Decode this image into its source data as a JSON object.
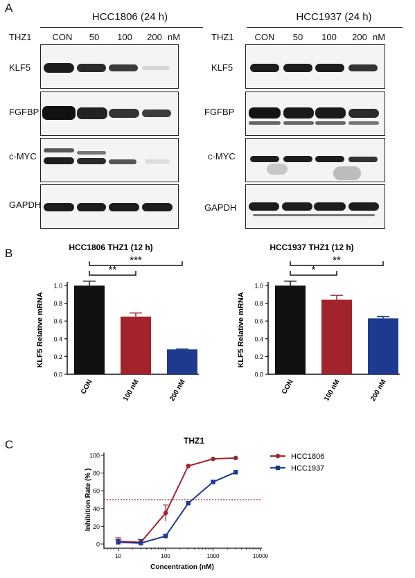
{
  "panel_labels": {
    "a": "A",
    "b": "B",
    "c": "C"
  },
  "panelA": {
    "left": {
      "title": "HCC1806 (24 h)",
      "treatment": "THZ1",
      "lanes": [
        "CON",
        "50",
        "100",
        "200"
      ],
      "unit": "nM",
      "proteins": [
        "KLF5",
        "FGFBP",
        "c-MYC",
        "GAPDH"
      ]
    },
    "right": {
      "title": "HCC1937 (24 h)",
      "treatment": "THZ1",
      "lanes": [
        "CON",
        "50",
        "100",
        "200"
      ],
      "unit": "nM",
      "proteins": [
        "KLF5",
        "FGFBP",
        "c-MYC",
        "GAPDH"
      ]
    }
  },
  "chart_data": [
    {
      "type": "bar",
      "title": "HCC1806  THZ1 (12 h)",
      "ylabel": "KLF5 Relative mRNA",
      "categories": [
        "CON",
        "100 nM",
        "200 nM"
      ],
      "values": [
        1.0,
        0.65,
        0.28
      ],
      "errors": [
        0.05,
        0.04,
        0.005
      ],
      "colors": [
        "#111111",
        "#a3232d",
        "#1e3a8f"
      ],
      "ylim": [
        0,
        1.0
      ],
      "yticks": [
        "0.0",
        "0.2",
        "0.4",
        "0.6",
        "0.8",
        "1.0"
      ],
      "significance": [
        {
          "from": "CON",
          "to": "100 nM",
          "label": "**"
        },
        {
          "from": "CON",
          "to": "200 nM",
          "label": "***"
        }
      ]
    },
    {
      "type": "bar",
      "title": "HCC1937 THZ1 (12 h)",
      "ylabel": "KLF5 Relative mRNA",
      "categories": [
        "CON",
        "100 nM",
        "200 nM"
      ],
      "values": [
        1.0,
        0.84,
        0.63
      ],
      "errors": [
        0.05,
        0.05,
        0.02
      ],
      "colors": [
        "#111111",
        "#a3232d",
        "#1e3a8f"
      ],
      "ylim": [
        0,
        1.0
      ],
      "yticks": [
        "0.0",
        "0.2",
        "0.4",
        "0.6",
        "0.8",
        "1.0"
      ],
      "significance": [
        {
          "from": "CON",
          "to": "100 nM",
          "label": "*"
        },
        {
          "from": "CON",
          "to": "200 nM",
          "label": "**"
        }
      ]
    },
    {
      "type": "line",
      "title": "THZ1",
      "xlabel": "Concentration (nM)",
      "ylabel": "Inhibition Rate (% )",
      "xscale": "log",
      "xlim": [
        5,
        10000
      ],
      "ylim": [
        0,
        100
      ],
      "xticks": [
        "10",
        "100",
        "1000",
        "10000"
      ],
      "yticks": [
        "0",
        "20",
        "40",
        "60",
        "80",
        "100"
      ],
      "reference_line_y": 50,
      "legend_position": "top-right",
      "series": [
        {
          "name": "HCC1806",
          "color": "#a3232d",
          "marker": "circle",
          "x": [
            10,
            30,
            100,
            300,
            1000,
            3000
          ],
          "y": [
            3,
            2,
            35,
            88,
            96,
            97
          ],
          "err": [
            4,
            3,
            9,
            1,
            1,
            1
          ]
        },
        {
          "name": "HCC1937",
          "color": "#1e3a8f",
          "marker": "square",
          "x": [
            10,
            30,
            100,
            300,
            1000,
            3000
          ],
          "y": [
            2,
            1,
            9,
            46,
            70,
            81
          ],
          "err": [
            3,
            4,
            2,
            1,
            1,
            1
          ]
        }
      ]
    }
  ]
}
